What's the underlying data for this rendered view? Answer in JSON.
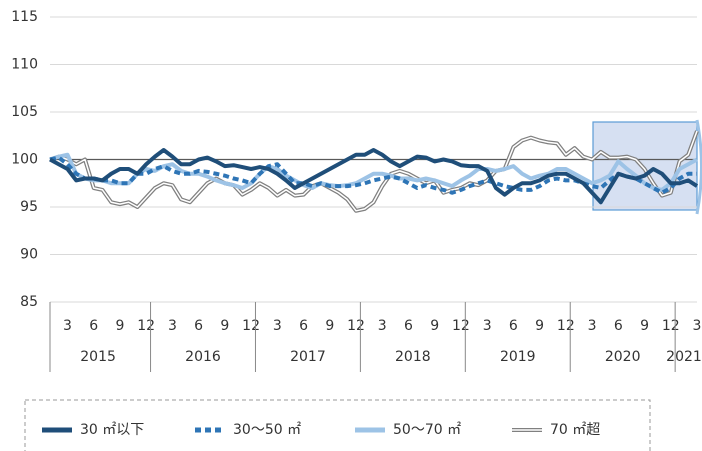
{
  "chart_data": {
    "type": "line",
    "categories": [
      null,
      null,
      "3",
      null,
      null,
      "6",
      null,
      null,
      "9",
      null,
      null,
      "12",
      null,
      null,
      "3",
      null,
      null,
      "6",
      null,
      null,
      "9",
      null,
      null,
      "12",
      null,
      null,
      "3",
      null,
      null,
      "6",
      null,
      null,
      "9",
      null,
      null,
      "12",
      null,
      null,
      "3",
      null,
      null,
      "6",
      null,
      null,
      "9",
      null,
      null,
      "12",
      null,
      null,
      "3",
      null,
      null,
      "6",
      null,
      null,
      "9",
      null,
      null,
      "12",
      null,
      null,
      "3",
      null,
      null,
      "6",
      null,
      null,
      "9",
      null,
      null,
      "12",
      null,
      null,
      "3"
    ],
    "year_labels": [
      "2015",
      "2016",
      "2017",
      "2018",
      "2019",
      "2020",
      "2021"
    ],
    "ylim": [
      85,
      115
    ],
    "yticks": [
      85,
      90,
      95,
      100,
      105,
      110,
      115
    ],
    "grid": true,
    "reference_line": 100,
    "series": [
      {
        "name": "30 ㎡以下",
        "color": "#1f4e79",
        "style": "solid",
        "values": [
          100,
          99.5,
          99,
          97.8,
          98,
          98,
          97.8,
          98.5,
          99,
          99,
          98.5,
          99.5,
          100.3,
          101,
          100.3,
          99.5,
          99.5,
          100,
          100.2,
          99.8,
          99.3,
          99.4,
          99.2,
          99,
          99.2,
          99,
          98.5,
          97.8,
          97,
          97.5,
          98,
          98.5,
          99,
          99.5,
          100,
          100.5,
          100.5,
          101,
          100.5,
          99.8,
          99.3,
          99.8,
          100.3,
          100.2,
          99.8,
          100,
          99.8,
          99.4,
          99.3,
          99.3,
          98.8,
          97,
          96.3,
          97,
          97.5,
          97.5,
          97.8,
          98.3,
          98.5,
          98.5,
          98,
          97.5,
          96.5,
          95.5,
          97,
          98.5,
          98.2,
          98,
          98.3,
          99,
          98.5,
          97.5,
          97.5,
          97.8,
          97.2
        ]
      },
      {
        "name": "30～50 ㎡",
        "color": "#2e75b6",
        "style": "dashed",
        "values": [
          100,
          100.2,
          99.5,
          98.5,
          98,
          98,
          97.8,
          97.8,
          97.5,
          97.5,
          98.5,
          98.5,
          99,
          99.3,
          98.8,
          98.5,
          98.5,
          98.8,
          98.7,
          98.5,
          98.3,
          98,
          97.8,
          97.5,
          98.5,
          99.3,
          99.5,
          98.5,
          97.5,
          97.5,
          97.2,
          97.5,
          97.2,
          97.2,
          97.2,
          97.3,
          97.5,
          97.8,
          98,
          98.2,
          98,
          97.5,
          97,
          97.3,
          97,
          96.8,
          96.5,
          96.8,
          97.2,
          97.5,
          97.8,
          97.5,
          97.2,
          97,
          96.8,
          96.8,
          97.2,
          97.8,
          98,
          97.8,
          97.8,
          97.5,
          97.2,
          97,
          97.8,
          98.5,
          98.2,
          98,
          97.5,
          97,
          96.5,
          97,
          98,
          98.5,
          98.5
        ]
      },
      {
        "name": "50～70 ㎡",
        "color": "#9dc3e6",
        "style": "solid",
        "values": [
          100,
          100.3,
          100.5,
          98.5,
          98,
          97.8,
          97.8,
          97.5,
          97.5,
          97.5,
          98.5,
          99,
          98.8,
          99.3,
          99.5,
          98.8,
          98.5,
          98.5,
          98.2,
          97.8,
          97.5,
          97.3,
          97,
          97.5,
          98.5,
          99.3,
          99,
          98.3,
          97.8,
          97.3,
          97,
          97.5,
          97.3,
          97.2,
          97.3,
          97.5,
          98,
          98.5,
          98.5,
          98.3,
          98,
          98,
          97.8,
          98,
          97.8,
          97.5,
          97.2,
          97.8,
          98.3,
          99,
          99,
          98.8,
          99,
          99.3,
          98.5,
          98,
          98.3,
          98.5,
          99,
          99,
          98.5,
          98,
          97.5,
          97.8,
          98.3,
          99.8,
          99,
          98.3,
          97.5,
          97,
          96.8,
          97.5,
          99,
          99.5,
          100
        ]
      },
      {
        "name": "70 ㎡超",
        "color": "#808080",
        "style": "double",
        "values": [
          100,
          100.3,
          100,
          99.5,
          100,
          97,
          96.8,
          95.5,
          95.3,
          95.5,
          95,
          96,
          97,
          97.5,
          97.3,
          95.8,
          95.5,
          96.5,
          97.5,
          98,
          97.5,
          97.3,
          96.3,
          96.8,
          97.5,
          97,
          96.2,
          96.8,
          96.2,
          96.3,
          97.2,
          97.5,
          97,
          96.5,
          95.8,
          94.6,
          94.8,
          95.5,
          97.2,
          98.5,
          98.8,
          98.5,
          98,
          97.5,
          97.8,
          96.5,
          96.8,
          97,
          97.5,
          97.3,
          97.8,
          98.8,
          99,
          101.3,
          102,
          102.3,
          102,
          101.8,
          101.7,
          100.5,
          101.2,
          100.3,
          100,
          100.8,
          100.2,
          100.2,
          100.3,
          100,
          99,
          97.5,
          96.2,
          96.5,
          99.8,
          100.5,
          103
        ]
      }
    ]
  }
}
